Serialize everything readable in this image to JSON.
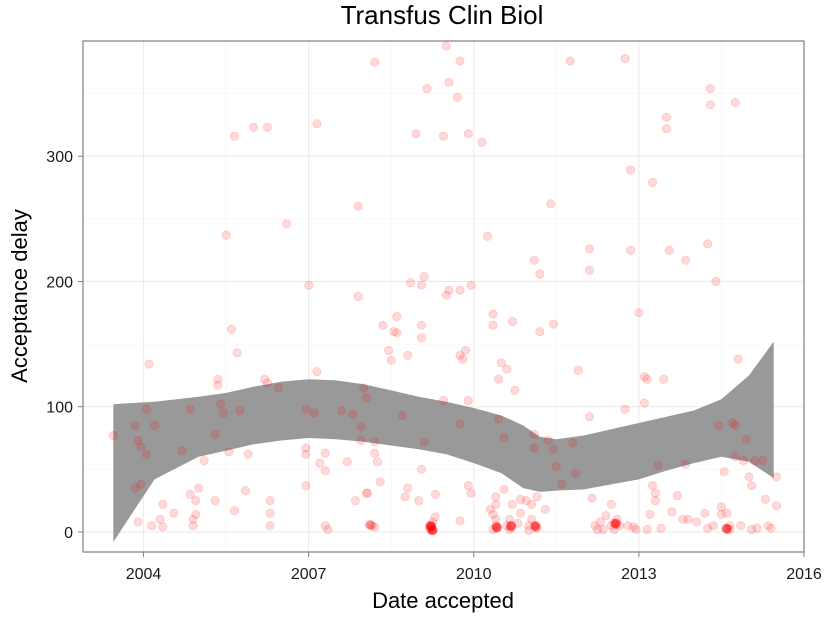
{
  "chart_data": {
    "type": "scatter",
    "title": "Transfus Clin Biol",
    "xlabel": "Date accepted",
    "ylabel": "Acceptance delay",
    "xlim": [
      2002.9,
      2016.0
    ],
    "ylim": [
      -16,
      392
    ],
    "x_ticks": [
      2004,
      2007,
      2010,
      2013,
      2016
    ],
    "x_tick_labels": [
      "2004",
      "2007",
      "2010",
      "2013",
      "2016"
    ],
    "y_ticks": [
      0,
      100,
      200,
      300
    ],
    "y_tick_labels": [
      "0",
      "100",
      "200",
      "300"
    ],
    "grid": true,
    "legend": "none",
    "point_color": "#ff0000",
    "point_alpha": 0.15,
    "band_color": "#999999",
    "points": [
      [
        2003.45,
        77
      ],
      [
        2003.85,
        35
      ],
      [
        2003.85,
        85
      ],
      [
        2003.9,
        73
      ],
      [
        2003.95,
        68
      ],
      [
        2003.95,
        38
      ],
      [
        2003.9,
        8
      ],
      [
        2004.05,
        98
      ],
      [
        2004.1,
        134
      ],
      [
        2004.05,
        62
      ],
      [
        2004.2,
        85
      ],
      [
        2004.15,
        5
      ],
      [
        2004.3,
        10
      ],
      [
        2004.35,
        4
      ],
      [
        2004.35,
        22
      ],
      [
        2004.55,
        15
      ],
      [
        2004.7,
        65
      ],
      [
        2004.85,
        98
      ],
      [
        2004.85,
        30
      ],
      [
        2004.9,
        10
      ],
      [
        2004.9,
        5
      ],
      [
        2004.95,
        14
      ],
      [
        2004.95,
        25
      ],
      [
        2005.0,
        35
      ],
      [
        2005.1,
        57
      ],
      [
        2005.3,
        25
      ],
      [
        2005.3,
        78
      ],
      [
        2005.35,
        117
      ],
      [
        2005.35,
        122
      ],
      [
        2005.4,
        102
      ],
      [
        2005.45,
        95
      ],
      [
        2005.5,
        237
      ],
      [
        2005.55,
        64
      ],
      [
        2005.6,
        162
      ],
      [
        2005.65,
        316
      ],
      [
        2005.65,
        17
      ],
      [
        2005.7,
        143
      ],
      [
        2005.75,
        97
      ],
      [
        2005.85,
        33
      ],
      [
        2005.9,
        62
      ],
      [
        2006.0,
        323
      ],
      [
        2006.25,
        323
      ],
      [
        2006.2,
        122
      ],
      [
        2006.25,
        119
      ],
      [
        2006.3,
        25
      ],
      [
        2006.3,
        5
      ],
      [
        2006.3,
        15
      ],
      [
        2006.45,
        115
      ],
      [
        2006.6,
        246
      ],
      [
        2007.0,
        197
      ],
      [
        2006.95,
        98
      ],
      [
        2006.95,
        67
      ],
      [
        2006.95,
        62
      ],
      [
        2006.95,
        37
      ],
      [
        2007.15,
        326
      ],
      [
        2007.15,
        128
      ],
      [
        2007.1,
        95
      ],
      [
        2007.2,
        55
      ],
      [
        2007.3,
        63
      ],
      [
        2007.3,
        49
      ],
      [
        2007.3,
        5
      ],
      [
        2007.35,
        2
      ],
      [
        2007.6,
        97
      ],
      [
        2007.7,
        56
      ],
      [
        2007.8,
        94
      ],
      [
        2007.85,
        25
      ],
      [
        2007.9,
        260
      ],
      [
        2007.9,
        188
      ],
      [
        2007.95,
        73
      ],
      [
        2007.95,
        84
      ],
      [
        2008.0,
        115
      ],
      [
        2008.05,
        107
      ],
      [
        2008.05,
        31
      ],
      [
        2008.15,
        5
      ],
      [
        2008.2,
        4
      ],
      [
        2008.2,
        375
      ],
      [
        2008.2,
        72
      ],
      [
        2008.2,
        63
      ],
      [
        2008.25,
        56
      ],
      [
        2008.3,
        40
      ],
      [
        2008.35,
        165
      ],
      [
        2008.45,
        145
      ],
      [
        2008.5,
        137
      ],
      [
        2008.55,
        160
      ],
      [
        2008.6,
        172
      ],
      [
        2008.6,
        159
      ],
      [
        2008.7,
        93
      ],
      [
        2008.85,
        199
      ],
      [
        2008.8,
        141
      ],
      [
        2008.75,
        28
      ],
      [
        2008.8,
        35
      ],
      [
        2008.95,
        318
      ],
      [
        2009.05,
        197
      ],
      [
        2009.05,
        50
      ],
      [
        2009.1,
        204
      ],
      [
        2009.15,
        354
      ],
      [
        2009.1,
        72
      ],
      [
        2009.2,
        5
      ],
      [
        2009.2,
        2
      ],
      [
        2009.25,
        8
      ],
      [
        2009.25,
        1
      ],
      [
        2009.3,
        12
      ],
      [
        2009.05,
        155
      ],
      [
        2009.05,
        165
      ],
      [
        2009.0,
        25
      ],
      [
        2009.3,
        30
      ],
      [
        2009.5,
        388
      ],
      [
        2009.45,
        316
      ],
      [
        2009.45,
        105
      ],
      [
        2009.5,
        189
      ],
      [
        2009.55,
        193
      ],
      [
        2009.55,
        359
      ],
      [
        2009.7,
        347
      ],
      [
        2009.75,
        376
      ],
      [
        2009.75,
        193
      ],
      [
        2009.75,
        141
      ],
      [
        2009.75,
        86
      ],
      [
        2009.75,
        9
      ],
      [
        2009.8,
        138
      ],
      [
        2009.85,
        145
      ],
      [
        2009.9,
        105
      ],
      [
        2009.9,
        318
      ],
      [
        2009.9,
        37
      ],
      [
        2009.95,
        31
      ],
      [
        2009.95,
        197
      ],
      [
        2010.15,
        311
      ],
      [
        2010.25,
        236
      ],
      [
        2010.3,
        18
      ],
      [
        2010.35,
        2
      ],
      [
        2010.4,
        22
      ],
      [
        2010.4,
        28
      ],
      [
        2010.35,
        174
      ],
      [
        2010.35,
        165
      ],
      [
        2010.35,
        14
      ],
      [
        2010.4,
        10
      ],
      [
        2010.4,
        5
      ],
      [
        2010.45,
        90
      ],
      [
        2010.45,
        122
      ],
      [
        2010.5,
        135
      ],
      [
        2010.55,
        75
      ],
      [
        2010.55,
        34
      ],
      [
        2010.6,
        130
      ],
      [
        2010.6,
        5
      ],
      [
        2010.65,
        10
      ],
      [
        2010.65,
        2
      ],
      [
        2010.7,
        22
      ],
      [
        2010.7,
        168
      ],
      [
        2010.75,
        113
      ],
      [
        2010.8,
        7
      ],
      [
        2010.85,
        26
      ],
      [
        2010.85,
        15
      ],
      [
        2010.95,
        25
      ],
      [
        2011.0,
        1
      ],
      [
        2011.0,
        5
      ],
      [
        2011.05,
        10
      ],
      [
        2011.05,
        22
      ],
      [
        2011.1,
        217
      ],
      [
        2011.1,
        67
      ],
      [
        2011.1,
        78
      ],
      [
        2011.15,
        28
      ],
      [
        2011.15,
        3
      ],
      [
        2011.2,
        206
      ],
      [
        2011.2,
        160
      ],
      [
        2011.3,
        18
      ],
      [
        2011.35,
        73
      ],
      [
        2011.4,
        262
      ],
      [
        2011.45,
        166
      ],
      [
        2011.45,
        66
      ],
      [
        2011.5,
        52
      ],
      [
        2011.6,
        38
      ],
      [
        2011.75,
        376
      ],
      [
        2011.8,
        71
      ],
      [
        2011.85,
        47
      ],
      [
        2011.9,
        129
      ],
      [
        2012.1,
        226
      ],
      [
        2012.1,
        209
      ],
      [
        2012.1,
        92
      ],
      [
        2012.15,
        27
      ],
      [
        2012.2,
        5
      ],
      [
        2012.25,
        2
      ],
      [
        2012.3,
        8
      ],
      [
        2012.35,
        2
      ],
      [
        2012.4,
        13
      ],
      [
        2012.5,
        22
      ],
      [
        2012.5,
        5
      ],
      [
        2012.55,
        7
      ],
      [
        2012.55,
        2
      ],
      [
        2012.6,
        10
      ],
      [
        2012.65,
        5
      ],
      [
        2012.75,
        98
      ],
      [
        2012.75,
        378
      ],
      [
        2012.8,
        5
      ],
      [
        2012.85,
        225
      ],
      [
        2012.85,
        289
      ],
      [
        2012.9,
        4
      ],
      [
        2012.95,
        2
      ],
      [
        2013.0,
        175
      ],
      [
        2013.1,
        124
      ],
      [
        2013.1,
        103
      ],
      [
        2013.15,
        2
      ],
      [
        2013.15,
        122
      ],
      [
        2013.2,
        14
      ],
      [
        2013.25,
        279
      ],
      [
        2013.25,
        37
      ],
      [
        2013.3,
        31
      ],
      [
        2013.3,
        25
      ],
      [
        2013.35,
        53
      ],
      [
        2013.4,
        3
      ],
      [
        2013.45,
        122
      ],
      [
        2013.5,
        331
      ],
      [
        2013.5,
        322
      ],
      [
        2013.55,
        225
      ],
      [
        2013.6,
        16
      ],
      [
        2013.7,
        29
      ],
      [
        2013.8,
        10
      ],
      [
        2013.85,
        217
      ],
      [
        2013.85,
        54
      ],
      [
        2013.9,
        10
      ],
      [
        2014.05,
        8
      ],
      [
        2014.2,
        15
      ],
      [
        2014.25,
        3
      ],
      [
        2014.25,
        230
      ],
      [
        2014.3,
        341
      ],
      [
        2014.3,
        354
      ],
      [
        2014.35,
        5
      ],
      [
        2014.4,
        200
      ],
      [
        2014.45,
        85
      ],
      [
        2014.5,
        20
      ],
      [
        2014.5,
        14
      ],
      [
        2014.55,
        48
      ],
      [
        2014.6,
        3
      ],
      [
        2014.6,
        15
      ],
      [
        2014.65,
        5
      ],
      [
        2014.65,
        2
      ],
      [
        2014.7,
        87
      ],
      [
        2014.75,
        343
      ],
      [
        2014.75,
        60
      ],
      [
        2014.75,
        85
      ],
      [
        2014.8,
        138
      ],
      [
        2014.85,
        5
      ],
      [
        2014.9,
        57
      ],
      [
        2014.95,
        74
      ],
      [
        2015.0,
        44
      ],
      [
        2015.05,
        37
      ],
      [
        2015.05,
        2
      ],
      [
        2015.1,
        57
      ],
      [
        2015.15,
        3
      ],
      [
        2015.25,
        57
      ],
      [
        2015.3,
        26
      ],
      [
        2015.35,
        5
      ],
      [
        2015.4,
        3
      ],
      [
        2015.5,
        21
      ],
      [
        2015.5,
        44
      ]
    ],
    "dense_points": [
      [
        2008.12,
        5,
        3
      ],
      [
        2009.22,
        4,
        8
      ],
      [
        2009.25,
        1,
        6
      ],
      [
        2010.42,
        3,
        6
      ],
      [
        2010.68,
        4,
        6
      ],
      [
        2011.12,
        4,
        6
      ],
      [
        2012.58,
        6,
        6
      ],
      [
        2014.6,
        2,
        5
      ],
      [
        2008.08,
        31,
        1
      ]
    ],
    "band": {
      "x": [
        2003.45,
        2004.2,
        2005.0,
        2005.5,
        2006.0,
        2006.5,
        2007.0,
        2007.5,
        2008.0,
        2008.5,
        2009.0,
        2009.5,
        2010.0,
        2010.5,
        2010.9,
        2011.2,
        2011.5,
        2012.0,
        2012.5,
        2013.0,
        2013.5,
        2014.0,
        2014.5,
        2015.0,
        2015.45
      ],
      "upper": [
        102,
        104,
        108,
        111,
        116,
        120,
        122,
        121,
        118,
        113,
        108,
        104,
        99,
        93,
        85,
        76,
        74,
        77,
        82,
        87,
        92,
        97,
        106,
        125,
        152
      ],
      "lower": [
        -8,
        42,
        60,
        65,
        70,
        73,
        75,
        74,
        72,
        69,
        66,
        62,
        55,
        47,
        35,
        32,
        33,
        34,
        38,
        42,
        49,
        55,
        60,
        56,
        43
      ]
    }
  }
}
